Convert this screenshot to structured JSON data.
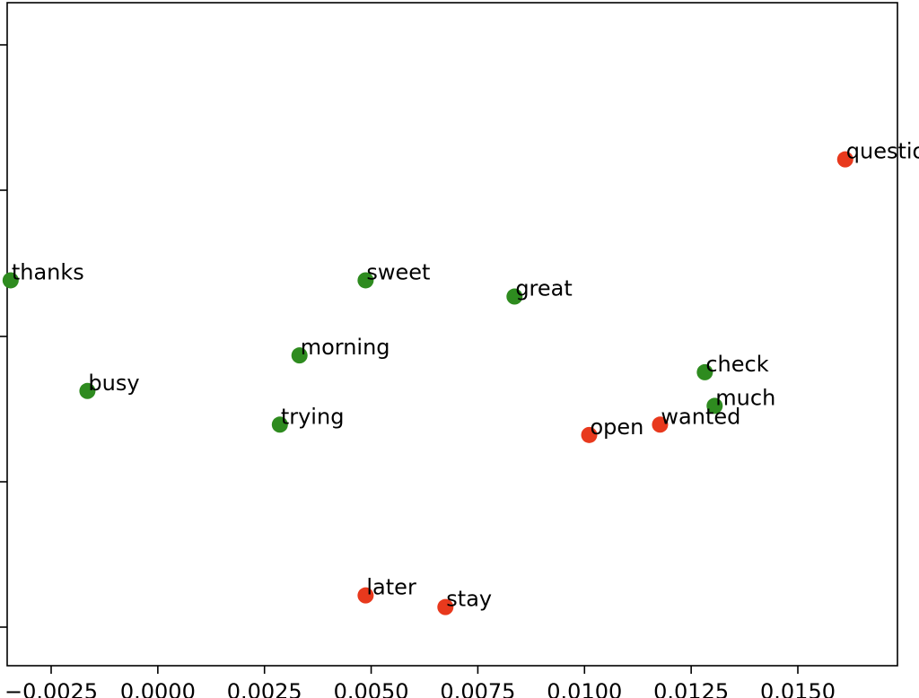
{
  "chart_data": {
    "type": "scatter",
    "title": "",
    "xlabel": "",
    "ylabel": "",
    "xlim": [
      -0.00345,
      0.01735
    ],
    "x_ticks": [
      {
        "value": -0.0025,
        "label": "−0.0025"
      },
      {
        "value": 0.0,
        "label": "0.0000"
      },
      {
        "value": 0.0025,
        "label": "0.0025"
      },
      {
        "value": 0.005,
        "label": "0.0050"
      },
      {
        "value": 0.0075,
        "label": "0.0075"
      },
      {
        "value": 0.01,
        "label": "0.0100"
      },
      {
        "value": 0.0125,
        "label": "0.0125"
      },
      {
        "value": 0.015,
        "label": "0.0150"
      }
    ],
    "y_ticks_count": 5,
    "y_tick_labels_visible": false,
    "grid": false,
    "legend": "none",
    "colors": {
      "green": "#2e8b1f",
      "red": "#e8391d"
    },
    "points": [
      {
        "label": "thanks",
        "x": -0.00345,
        "y": 0.536,
        "color": "green"
      },
      {
        "label": "busy",
        "x": -0.00165,
        "y": 0.365,
        "color": "green"
      },
      {
        "label": "morning",
        "x": 0.00332,
        "y": 0.42,
        "color": "green"
      },
      {
        "label": "trying",
        "x": 0.00286,
        "y": 0.313,
        "color": "green"
      },
      {
        "label": "sweet",
        "x": 0.00487,
        "y": 0.536,
        "color": "green"
      },
      {
        "label": "great",
        "x": 0.00836,
        "y": 0.511,
        "color": "green"
      },
      {
        "label": "check",
        "x": 0.01282,
        "y": 0.394,
        "color": "green"
      },
      {
        "label": "much",
        "x": 0.01305,
        "y": 0.342,
        "color": "green"
      },
      {
        "label": "open",
        "x": 0.01011,
        "y": 0.297,
        "color": "red"
      },
      {
        "label": "wanted",
        "x": 0.01177,
        "y": 0.313,
        "color": "red"
      },
      {
        "label": "question",
        "x": 0.01611,
        "y": 0.723,
        "color": "red"
      },
      {
        "label": "later",
        "x": 0.00487,
        "y": 0.049,
        "color": "red"
      },
      {
        "label": "stay",
        "x": 0.00674,
        "y": 0.031,
        "color": "red"
      }
    ]
  }
}
